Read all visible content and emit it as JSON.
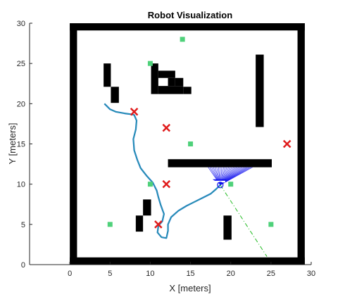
{
  "chart_data": {
    "type": "scatter",
    "title": "Robot Visualization",
    "xlabel": "X [meters]",
    "ylabel": "Y [meters]",
    "xlim": [
      -5,
      30
    ],
    "ylim": [
      0,
      30
    ],
    "xticks": [
      "0",
      "5",
      "10",
      "15",
      "20",
      "25",
      "30"
    ],
    "xtick_values": [
      0,
      5,
      10,
      15,
      20,
      25,
      30
    ],
    "yticks": [
      "0",
      "5",
      "10",
      "15",
      "20",
      "25",
      "30"
    ],
    "ytick_values": [
      0,
      5,
      10,
      15,
      20,
      25,
      30
    ],
    "grid": false,
    "colors": {
      "obstacle": "#000000",
      "landmark": "#4fd17a",
      "target": "#e01b1b",
      "path": "#1f6fd1",
      "path_inner": "#2aa89a",
      "robot": "#1010ee",
      "heading": "#22bb22"
    },
    "obstacles": [
      {
        "x0": 0,
        "x1": 29.2,
        "y0": 0,
        "y1": 0.9
      },
      {
        "x0": 0,
        "x1": 29.2,
        "y0": 29.1,
        "y1": 30
      },
      {
        "x0": 0,
        "x1": 0.9,
        "y0": 0,
        "y1": 30
      },
      {
        "x0": 28.3,
        "x1": 29.2,
        "y0": 0,
        "y1": 30
      },
      {
        "x0": 4.2,
        "x1": 5.1,
        "y0": 22.1,
        "y1": 25.0
      },
      {
        "x0": 5.1,
        "x1": 6.1,
        "y0": 20.1,
        "y1": 22.1
      },
      {
        "x0": 10.1,
        "x1": 11.0,
        "y0": 21.2,
        "y1": 25.0
      },
      {
        "x0": 11.0,
        "x1": 13.1,
        "y0": 23.2,
        "y1": 24.1
      },
      {
        "x0": 12.2,
        "x1": 13.1,
        "y0": 22.2,
        "y1": 23.2
      },
      {
        "x0": 11.0,
        "x1": 14.1,
        "y0": 21.2,
        "y1": 22.2
      },
      {
        "x0": 13.1,
        "x1": 14.1,
        "y0": 22.2,
        "y1": 23.2
      },
      {
        "x0": 14.1,
        "x1": 15.1,
        "y0": 21.2,
        "y1": 22.1
      },
      {
        "x0": 23.1,
        "x1": 24.1,
        "y0": 17.1,
        "y1": 26.1
      },
      {
        "x0": 12.2,
        "x1": 25.1,
        "y0": 12.1,
        "y1": 13.1
      },
      {
        "x0": 9.1,
        "x1": 10.1,
        "y0": 6.1,
        "y1": 8.1
      },
      {
        "x0": 8.2,
        "x1": 9.1,
        "y0": 4.1,
        "y1": 6.1
      },
      {
        "x0": 19.1,
        "x1": 20.1,
        "y0": 3.1,
        "y1": 6.1
      }
    ],
    "landmarks": [
      {
        "x": 14,
        "y": 28
      },
      {
        "x": 10,
        "y": 25
      },
      {
        "x": 15,
        "y": 15
      },
      {
        "x": 10,
        "y": 10
      },
      {
        "x": 20,
        "y": 10
      },
      {
        "x": 5,
        "y": 5
      },
      {
        "x": 25,
        "y": 5
      }
    ],
    "targets": [
      {
        "x": 8,
        "y": 19
      },
      {
        "x": 12,
        "y": 17
      },
      {
        "x": 27,
        "y": 15
      },
      {
        "x": 12,
        "y": 10
      },
      {
        "x": 11,
        "y": 5
      }
    ],
    "path": [
      [
        4.3,
        20.0
      ],
      [
        5.0,
        19.3
      ],
      [
        5.7,
        19.0
      ],
      [
        6.8,
        18.8
      ],
      [
        7.5,
        18.7
      ],
      [
        8.0,
        18.6
      ],
      [
        8.3,
        17.9
      ],
      [
        8.2,
        16.8
      ],
      [
        7.9,
        15.6
      ],
      [
        8.0,
        14.2
      ],
      [
        8.4,
        13.0
      ],
      [
        8.8,
        12.0
      ],
      [
        9.5,
        11.1
      ],
      [
        10.3,
        10.2
      ],
      [
        10.8,
        9.2
      ],
      [
        11.0,
        8.4
      ],
      [
        11.3,
        7.4
      ],
      [
        11.7,
        6.3
      ],
      [
        11.5,
        5.4
      ],
      [
        11.0,
        4.8
      ],
      [
        10.9,
        4.0
      ],
      [
        11.4,
        3.4
      ],
      [
        12.0,
        3.3
      ],
      [
        12.2,
        4.2
      ],
      [
        12.2,
        5.0
      ],
      [
        12.6,
        5.9
      ],
      [
        13.5,
        6.7
      ],
      [
        14.5,
        7.3
      ],
      [
        15.5,
        7.8
      ],
      [
        16.5,
        8.3
      ],
      [
        17.5,
        8.8
      ],
      [
        18.2,
        9.4
      ],
      [
        18.7,
        9.9
      ]
    ],
    "robot": {
      "x": 18.7,
      "y": 9.9
    },
    "sensor_rays": {
      "x0": 17.2,
      "x1": 22.7,
      "y": 12.1
    },
    "heading_line": {
      "x1": 24.5,
      "y1": 1.0
    }
  }
}
